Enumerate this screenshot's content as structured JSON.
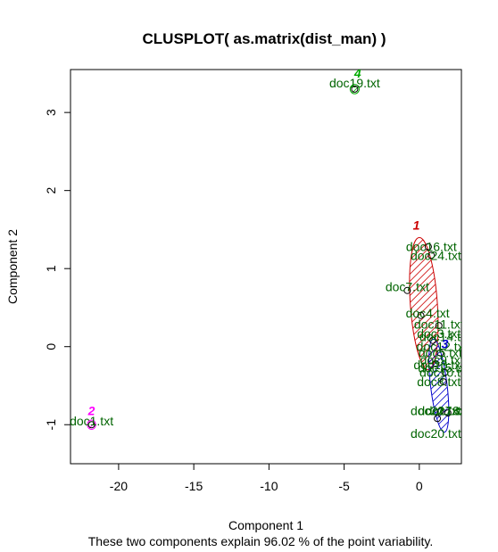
{
  "chart_data": {
    "type": "scatter",
    "title": "CLUSPLOT( as.matrix(dist_man) )",
    "xlabel": "Component 1",
    "ylabel": "Component 2",
    "subtitle": "These two components explain 96.02 % of the point variability.",
    "xlim": [
      -23.2,
      2.8
    ],
    "ylim": [
      -1.5,
      3.55
    ],
    "xticks": [
      -20,
      -15,
      -10,
      -5,
      0
    ],
    "yticks": [
      -1,
      0,
      1,
      2,
      3
    ],
    "colors": {
      "cluster1": "#cc0000",
      "cluster2": "#ff00ff",
      "cluster3": "#0000cc",
      "cluster4": "#00aa00",
      "labels": "#006400",
      "points": "#000000"
    },
    "clusters": [
      {
        "label": "1",
        "color": "#cc0000",
        "label_pos": [
          -0.2,
          1.5
        ],
        "ellipse": {
          "cx": 0.3,
          "cy": 0.55,
          "rx": 0.9,
          "ry": 0.85,
          "tilt": -0.07
        }
      },
      {
        "label": "2",
        "color": "#ff00ff",
        "label_pos": [
          -21.8,
          -0.88
        ],
        "ellipse": {
          "cx": -21.8,
          "cy": -1.0,
          "rx": 0.28,
          "ry": 0.06,
          "tilt": 0
        }
      },
      {
        "label": "3",
        "color": "#0000cc",
        "label_pos": [
          1.7,
          -0.02
        ],
        "ellipse": {
          "cx": 1.3,
          "cy": -0.5,
          "rx": 0.55,
          "ry": 0.6,
          "tilt": -0.12
        }
      },
      {
        "label": "4",
        "color": "#00aa00",
        "label_pos": [
          -4.1,
          3.45
        ],
        "ellipse": {
          "cx": -4.3,
          "cy": 3.3,
          "rx": 0.3,
          "ry": 0.06,
          "tilt": 0
        }
      }
    ],
    "points": [
      {
        "label": "doc19.txt",
        "x": -4.3,
        "y": 3.3
      },
      {
        "label": "doc16.txt",
        "x": 0.6,
        "y": 1.28
      },
      {
        "label": "doc24.txt",
        "x": 0.8,
        "y": 1.17
      },
      {
        "label": "doc7.txt",
        "x": -0.8,
        "y": 0.72
      },
      {
        "label": "doc4.txt",
        "x": 0.1,
        "y": 0.4
      },
      {
        "label": "doc11.txt",
        "x": 1.3,
        "y": 0.27
      },
      {
        "label": "doc3.txt",
        "x": 0.9,
        "y": 0.08
      },
      {
        "label": "doc6.txt",
        "x": 1.4,
        "y": -0.08
      },
      {
        "label": "doc9.txt",
        "x": 1.1,
        "y": -0.22
      },
      {
        "label": "doc10.txt",
        "x": 1.7,
        "y": -0.33
      },
      {
        "label": "doc8.txt",
        "x": 1.6,
        "y": -0.45
      },
      {
        "label": "doc22.txt",
        "x": 1.4,
        "y": -0.83
      },
      {
        "label": "doc23.txt",
        "x": 1.9,
        "y": -0.85
      },
      {
        "label": "doc20.txt",
        "x": 1.2,
        "y": -0.92
      },
      {
        "label": "doc1.txt",
        "x": -21.8,
        "y": -1.0
      }
    ],
    "point_labels": [
      {
        "text": "doc19.txt",
        "x": -4.3,
        "y": 3.38
      },
      {
        "text": "doc16.txt",
        "x": 0.8,
        "y": 1.28
      },
      {
        "text": "doc24.txt",
        "x": 1.1,
        "y": 1.17
      },
      {
        "text": "doc7.txt",
        "x": -0.8,
        "y": 0.77
      },
      {
        "text": "doc4.txt",
        "x": 0.55,
        "y": 0.43
      },
      {
        "text": "doc11.txt",
        "x": 1.3,
        "y": 0.29
      },
      {
        "text": "doc3.txt",
        "x": 1.3,
        "y": 0.17
      },
      {
        "text": "doc14.txt",
        "x": 1.7,
        "y": 0.13
      },
      {
        "text": "doc12.txt",
        "x": 1.5,
        "y": 0.0
      },
      {
        "text": "doc5.txt",
        "x": 1.4,
        "y": -0.08
      },
      {
        "text": "doc9.txt",
        "x": 1.5,
        "y": -0.17
      },
      {
        "text": "doc13.txt",
        "x": 1.3,
        "y": -0.23
      },
      {
        "text": "doc15.txt",
        "x": 1.6,
        "y": -0.27
      },
      {
        "text": "doc10.txt",
        "x": 1.7,
        "y": -0.33
      },
      {
        "text": "doc8.txt",
        "x": 1.3,
        "y": -0.45
      },
      {
        "text": "doc22.txt",
        "x": 1.1,
        "y": -0.82
      },
      {
        "text": "doc17.txt",
        "x": 1.6,
        "y": -0.82
      },
      {
        "text": "doc18.txt",
        "x": 2.1,
        "y": -0.82
      },
      {
        "text": "doc20.txt",
        "x": 1.1,
        "y": -1.11
      },
      {
        "text": "doc1.txt",
        "x": -21.8,
        "y": -0.95
      }
    ]
  }
}
